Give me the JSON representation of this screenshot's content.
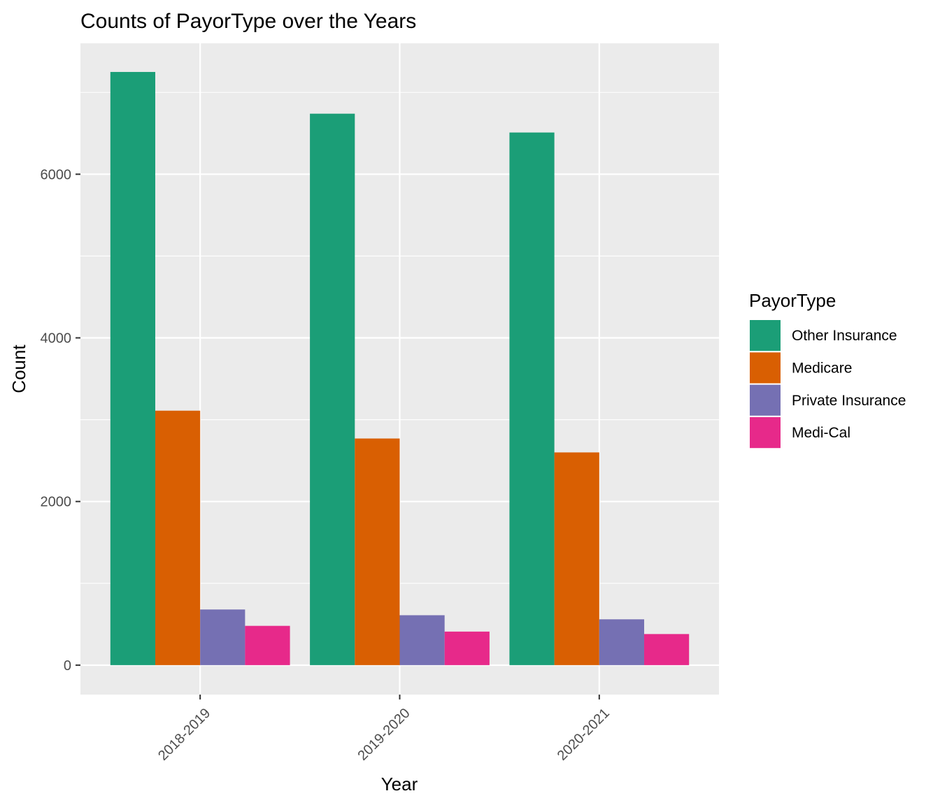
{
  "chart_data": {
    "type": "bar",
    "title": "Counts of PayorType over the Years",
    "xlabel": "Year",
    "ylabel": "Count",
    "categories": [
      "2018-2019",
      "2019-2020",
      "2020-2021"
    ],
    "series": [
      {
        "name": "Other Insurance",
        "color": "#1B9E77",
        "values": [
          7250,
          6740,
          6510
        ]
      },
      {
        "name": "Medicare",
        "color": "#D95F02",
        "values": [
          3110,
          2770,
          2600
        ]
      },
      {
        "name": "Private Insurance",
        "color": "#7570B3",
        "values": [
          680,
          610,
          560
        ]
      },
      {
        "name": "Medi-Cal",
        "color": "#E7298A",
        "values": [
          480,
          410,
          380
        ]
      }
    ],
    "yticks": [
      0,
      2000,
      4000,
      6000
    ],
    "ylim": [
      -360,
      7600
    ],
    "grid": true,
    "legend": {
      "title": "PayorType",
      "position": "right"
    },
    "panel_background": "#EBEBEB",
    "grid_color": "#FFFFFF"
  }
}
